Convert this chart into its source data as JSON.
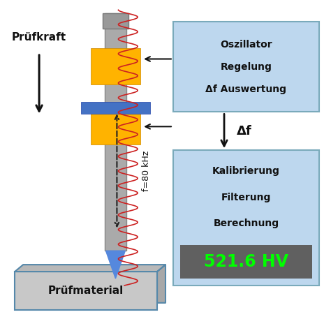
{
  "bg_color": "#ffffff",
  "probe_shaft_color": "#aaaaaa",
  "yellow_color": "#FFB300",
  "yellow_edge_color": "#cc8800",
  "blue_color": "#4472C4",
  "tip_color": "#5588DD",
  "material_color": "#c8c8c8",
  "material_edge_color": "#5588AA",
  "material_text": "Prüfmaterial",
  "material_text_color": "#111111",
  "box1_color": "#BDD7EE",
  "box1_edge_color": "#7AAABB",
  "box1_lines": [
    "Oszillator",
    "Regelung",
    "Δf Auswertung"
  ],
  "box2_color": "#BDD7EE",
  "box2_edge_color": "#7AAABB",
  "box2_lines": [
    "Kalibrierung",
    "Filterung",
    "Berechnung"
  ],
  "result_text": "521.6 HV",
  "result_color": "#00FF00",
  "result_bg": "#606060",
  "pruefkraft_text": "Prüfkraft",
  "delta_f_text": "Δf",
  "freq_text": "f=80 kHz",
  "arrow_color": "#111111",
  "sine_color": "#cc2222",
  "dashed_arrow_color": "#222222",
  "text_fontsize": 10,
  "label_fontsize": 11,
  "result_fontsize": 17
}
